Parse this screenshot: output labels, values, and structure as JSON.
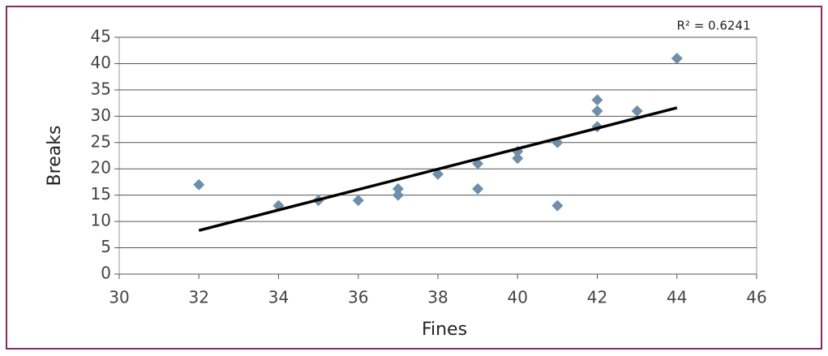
{
  "chart_data": {
    "type": "scatter",
    "x_label": "Fines",
    "y_label": "Breaks",
    "annotation": "R² = 0.6241",
    "series": [
      {
        "color": "#6f8fa8",
        "x": [
          32,
          34,
          35,
          36,
          37,
          37,
          38,
          39,
          39,
          40,
          40,
          41,
          41,
          42,
          42,
          42,
          43,
          44
        ],
        "values": [
          17,
          13,
          14,
          14,
          16.2,
          15,
          19,
          21,
          16.2,
          23.3,
          22,
          25,
          13,
          33.1,
          31,
          28,
          31,
          41
        ]
      }
    ],
    "trendline": {
      "color": "#000000",
      "x": [
        32,
        44
      ],
      "values": [
        8.3,
        31.6
      ]
    },
    "xlim": [
      30,
      46
    ],
    "xticks": [
      30,
      32,
      34,
      36,
      38,
      40,
      42,
      44,
      46
    ],
    "ylim": [
      0,
      45
    ],
    "yticks": [
      0,
      5,
      10,
      15,
      20,
      25,
      30,
      35,
      40,
      45
    ],
    "grid": true
  }
}
